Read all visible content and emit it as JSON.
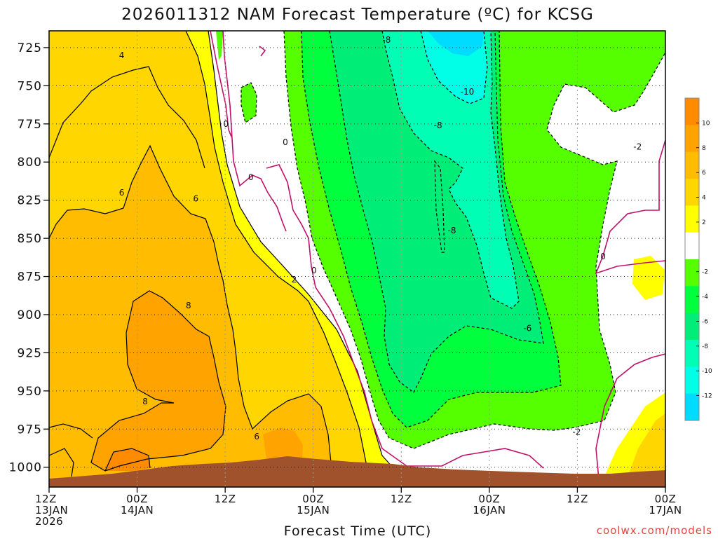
{
  "chart_data": {
    "type": "heatmap",
    "title": "2026011312 NAM Forecast Temperature (ºC) for KCSG",
    "xlabel": "Forecast Time (UTC)",
    "ylabel": "",
    "x_ticks": [
      {
        "lines": [
          "12Z",
          "13JAN",
          "2026"
        ],
        "hours": 0
      },
      {
        "lines": [
          "00Z",
          "14JAN"
        ],
        "hours": 12
      },
      {
        "lines": [
          "12Z"
        ],
        "hours": 24
      },
      {
        "lines": [
          "00Z",
          "15JAN"
        ],
        "hours": 36
      },
      {
        "lines": [
          "12Z"
        ],
        "hours": 48
      },
      {
        "lines": [
          "00Z",
          "16JAN"
        ],
        "hours": 60
      },
      {
        "lines": [
          "12Z"
        ],
        "hours": 72
      },
      {
        "lines": [
          "00Z",
          "17JAN"
        ],
        "hours": 84
      }
    ],
    "xlim_hours": [
      0,
      84
    ],
    "y_ticks": [
      725,
      750,
      775,
      800,
      825,
      850,
      875,
      900,
      925,
      950,
      975,
      1000
    ],
    "ylim_hpa": [
      1013,
      714
    ],
    "y_reversed": true,
    "grid": true,
    "colorbar": {
      "ticks": [
        10,
        8,
        6,
        4,
        2,
        -2,
        -4,
        -6,
        -8,
        -10,
        -12
      ],
      "bins": [
        {
          "from": 10,
          "to": 12,
          "color": "#ff8c00"
        },
        {
          "from": 8,
          "to": 10,
          "color": "#ffa300"
        },
        {
          "from": 6,
          "to": 8,
          "color": "#ffbc00"
        },
        {
          "from": 4,
          "to": 6,
          "color": "#ffd600"
        },
        {
          "from": 2,
          "to": 4,
          "color": "#ffff00"
        },
        {
          "from": -2,
          "to": 2,
          "color": "#ffffff"
        },
        {
          "from": -4,
          "to": -2,
          "color": "#55ff00"
        },
        {
          "from": -6,
          "to": -4,
          "color": "#00ff3c"
        },
        {
          "from": -8,
          "to": -6,
          "color": "#00ee77"
        },
        {
          "from": -10,
          "to": -8,
          "color": "#00ffb4"
        },
        {
          "from": -12,
          "to": -10,
          "color": "#00ffe6"
        },
        {
          "from": -14,
          "to": -12,
          "color": "#00dcff"
        }
      ]
    },
    "contour_labels": [
      {
        "text": "4",
        "hours": 9.9,
        "hpa": 730
      },
      {
        "text": "6",
        "hours": 9.9,
        "hpa": 820
      },
      {
        "text": "6",
        "hours": 20,
        "hpa": 824
      },
      {
        "text": "8",
        "hours": 19,
        "hpa": 894
      },
      {
        "text": "8",
        "hours": 13.1,
        "hpa": 957
      },
      {
        "text": "6",
        "hours": 28.3,
        "hpa": 980
      },
      {
        "text": "2",
        "hours": 33.4,
        "hpa": 877
      },
      {
        "text": "0",
        "hours": 24.1,
        "hpa": 775
      },
      {
        "text": "0",
        "hours": 32.2,
        "hpa": 787
      },
      {
        "text": "0",
        "hours": 27.5,
        "hpa": 810
      },
      {
        "text": "0",
        "hours": 36.1,
        "hpa": 871
      },
      {
        "text": "-8",
        "hours": 46,
        "hpa": 720
      },
      {
        "text": "-10",
        "hours": 57,
        "hpa": 754
      },
      {
        "text": "-8",
        "hours": 53,
        "hpa": 776
      },
      {
        "text": "-8",
        "hours": 54.9,
        "hpa": 845
      },
      {
        "text": "-6",
        "hours": 65.2,
        "hpa": 909
      },
      {
        "text": "-2",
        "hours": 80.2,
        "hpa": 790
      },
      {
        "text": "0",
        "hours": 75.5,
        "hpa": 862
      },
      {
        "text": "-2",
        "hours": 71.9,
        "hpa": 977
      }
    ],
    "terrain_color": "#a0522d"
  },
  "credit": "coolwx.com/models"
}
